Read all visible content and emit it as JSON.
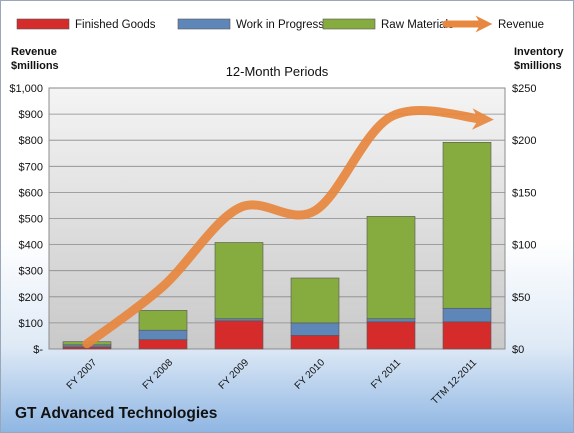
{
  "chart_data": {
    "type": "bar",
    "stacked": true,
    "title": "12-Month Periods",
    "categories": [
      "FY 2007",
      "FY 2008",
      "FY 2009",
      "FY 2010",
      "FY 2011",
      "TTM 12-2011"
    ],
    "series": [
      {
        "name": "Finished Goods",
        "axis": "right",
        "color": "#d62b2b",
        "values": [
          2,
          9,
          27,
          13,
          26,
          26
        ]
      },
      {
        "name": "Work in Progress",
        "axis": "right",
        "color": "#5f86b8",
        "values": [
          2,
          9,
          2,
          12,
          3,
          13
        ]
      },
      {
        "name": "Raw Materials",
        "axis": "right",
        "color": "#86ab3f",
        "values": [
          3,
          19,
          73,
          43,
          98,
          159
        ]
      },
      {
        "name": "Revenue",
        "axis": "left",
        "type": "line",
        "color": "#e8873f",
        "values": [
          20,
          240,
          540,
          530,
          890,
          880
        ]
      }
    ],
    "y_left": {
      "label_line1": "Revenue",
      "label_line2": "$millions",
      "ylim": [
        0,
        1000
      ],
      "ticks": [
        "$-",
        "$100",
        "$200",
        "$300",
        "$400",
        "$500",
        "$600",
        "$700",
        "$800",
        "$900",
        "$1,000"
      ]
    },
    "y_right": {
      "label_line1": "Inventory",
      "label_line2": "$millions",
      "ylim": [
        0,
        250
      ],
      "ticks": [
        "$0",
        "$50",
        "$100",
        "$150",
        "$200",
        "$250"
      ]
    },
    "grid": true,
    "legend": "top"
  },
  "footer": {
    "company": "GT Advanced Technologies"
  }
}
